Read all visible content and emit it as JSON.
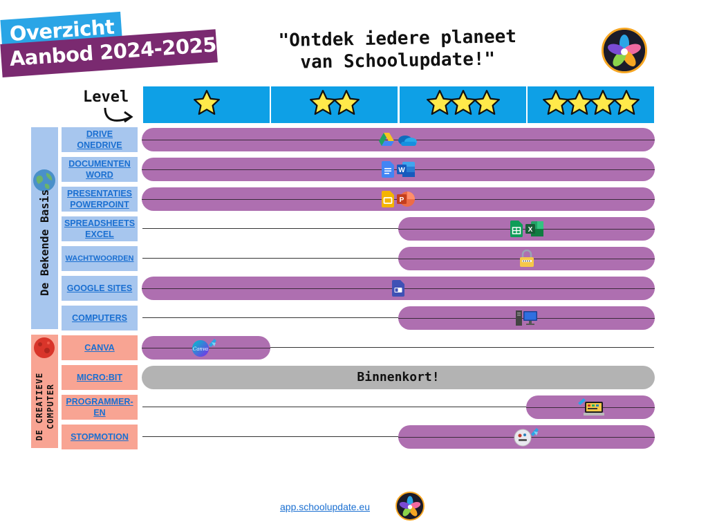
{
  "header": {
    "title_line1": "Overzicht",
    "title_line2": "Aanbod 2024-2025",
    "tagline_line1": "\"Ontdek iedere planeet",
    "tagline_line2": "van Schoolupdate!\""
  },
  "grid": {
    "level_label": "Level",
    "levels": [
      {
        "stars": 1
      },
      {
        "stars": 2
      },
      {
        "stars": 3
      },
      {
        "stars": 4
      }
    ]
  },
  "sections": [
    {
      "label": "De Bekende Basis",
      "color": "#a7c6ee"
    },
    {
      "label_line1": "De creatieve",
      "label_line2": "computer",
      "color": "#f8a493"
    }
  ],
  "rows": [
    {
      "label_line1": "DRIVE",
      "label_line2": "ONEDRIVE",
      "level_from": 1,
      "level_to": 4,
      "icons": [
        "google-drive-icon",
        "onedrive-icon"
      ]
    },
    {
      "label_line1": "DOCUMENTEN",
      "label_line2": "WORD",
      "level_from": 1,
      "level_to": 4,
      "icons": [
        "google-docs-icon",
        "word-icon"
      ]
    },
    {
      "label_line1": "PRESENTATIES",
      "label_line2": "POWERPOINT",
      "level_from": 1,
      "level_to": 4,
      "icons": [
        "google-slides-icon",
        "powerpoint-icon"
      ]
    },
    {
      "label_line1": "SPREADSHEETS",
      "label_line2": "EXCEL",
      "level_from": 3,
      "level_to": 4,
      "icons": [
        "google-sheets-icon",
        "excel-icon"
      ]
    },
    {
      "label_line1": "WACHTWOORDEN",
      "label_line2": "",
      "level_from": 3,
      "level_to": 4,
      "icons": [
        "password-lock-icon"
      ]
    },
    {
      "label_line1": "GOOGLE SITES",
      "label_line2": "",
      "level_from": 1,
      "level_to": 4,
      "icons": [
        "google-sites-icon"
      ]
    },
    {
      "label_line1": "COMPUTERS",
      "label_line2": "",
      "level_from": 3,
      "level_to": 4,
      "icons": [
        "computer-icon"
      ]
    },
    {
      "label_line1": "CANVA",
      "label_line2": "",
      "level_from": 1,
      "level_to": 1,
      "icons": [
        "canva-icon"
      ]
    },
    {
      "label_line1": "MICRO:BIT",
      "label_line2": "",
      "level_from": 1,
      "level_to": 4,
      "bar_text": "Binnenkort!"
    },
    {
      "label_line1": "PROGRAMMER-",
      "label_line2": "EN",
      "level_from": 4,
      "level_to": 4,
      "icons": [
        "programming-icon"
      ]
    },
    {
      "label_line1": "STOPMOTION",
      "label_line2": "",
      "level_from": 3,
      "level_to": 4,
      "icons": [
        "stopmotion-icon"
      ]
    }
  ],
  "colors": {
    "bar": "#ae6fb0",
    "bar_coming_soon": "#b3b3b3",
    "header_blue": "#0ea0e6",
    "star": "#ffe94a"
  },
  "footer": {
    "link": "app.schoolupdate.eu"
  }
}
